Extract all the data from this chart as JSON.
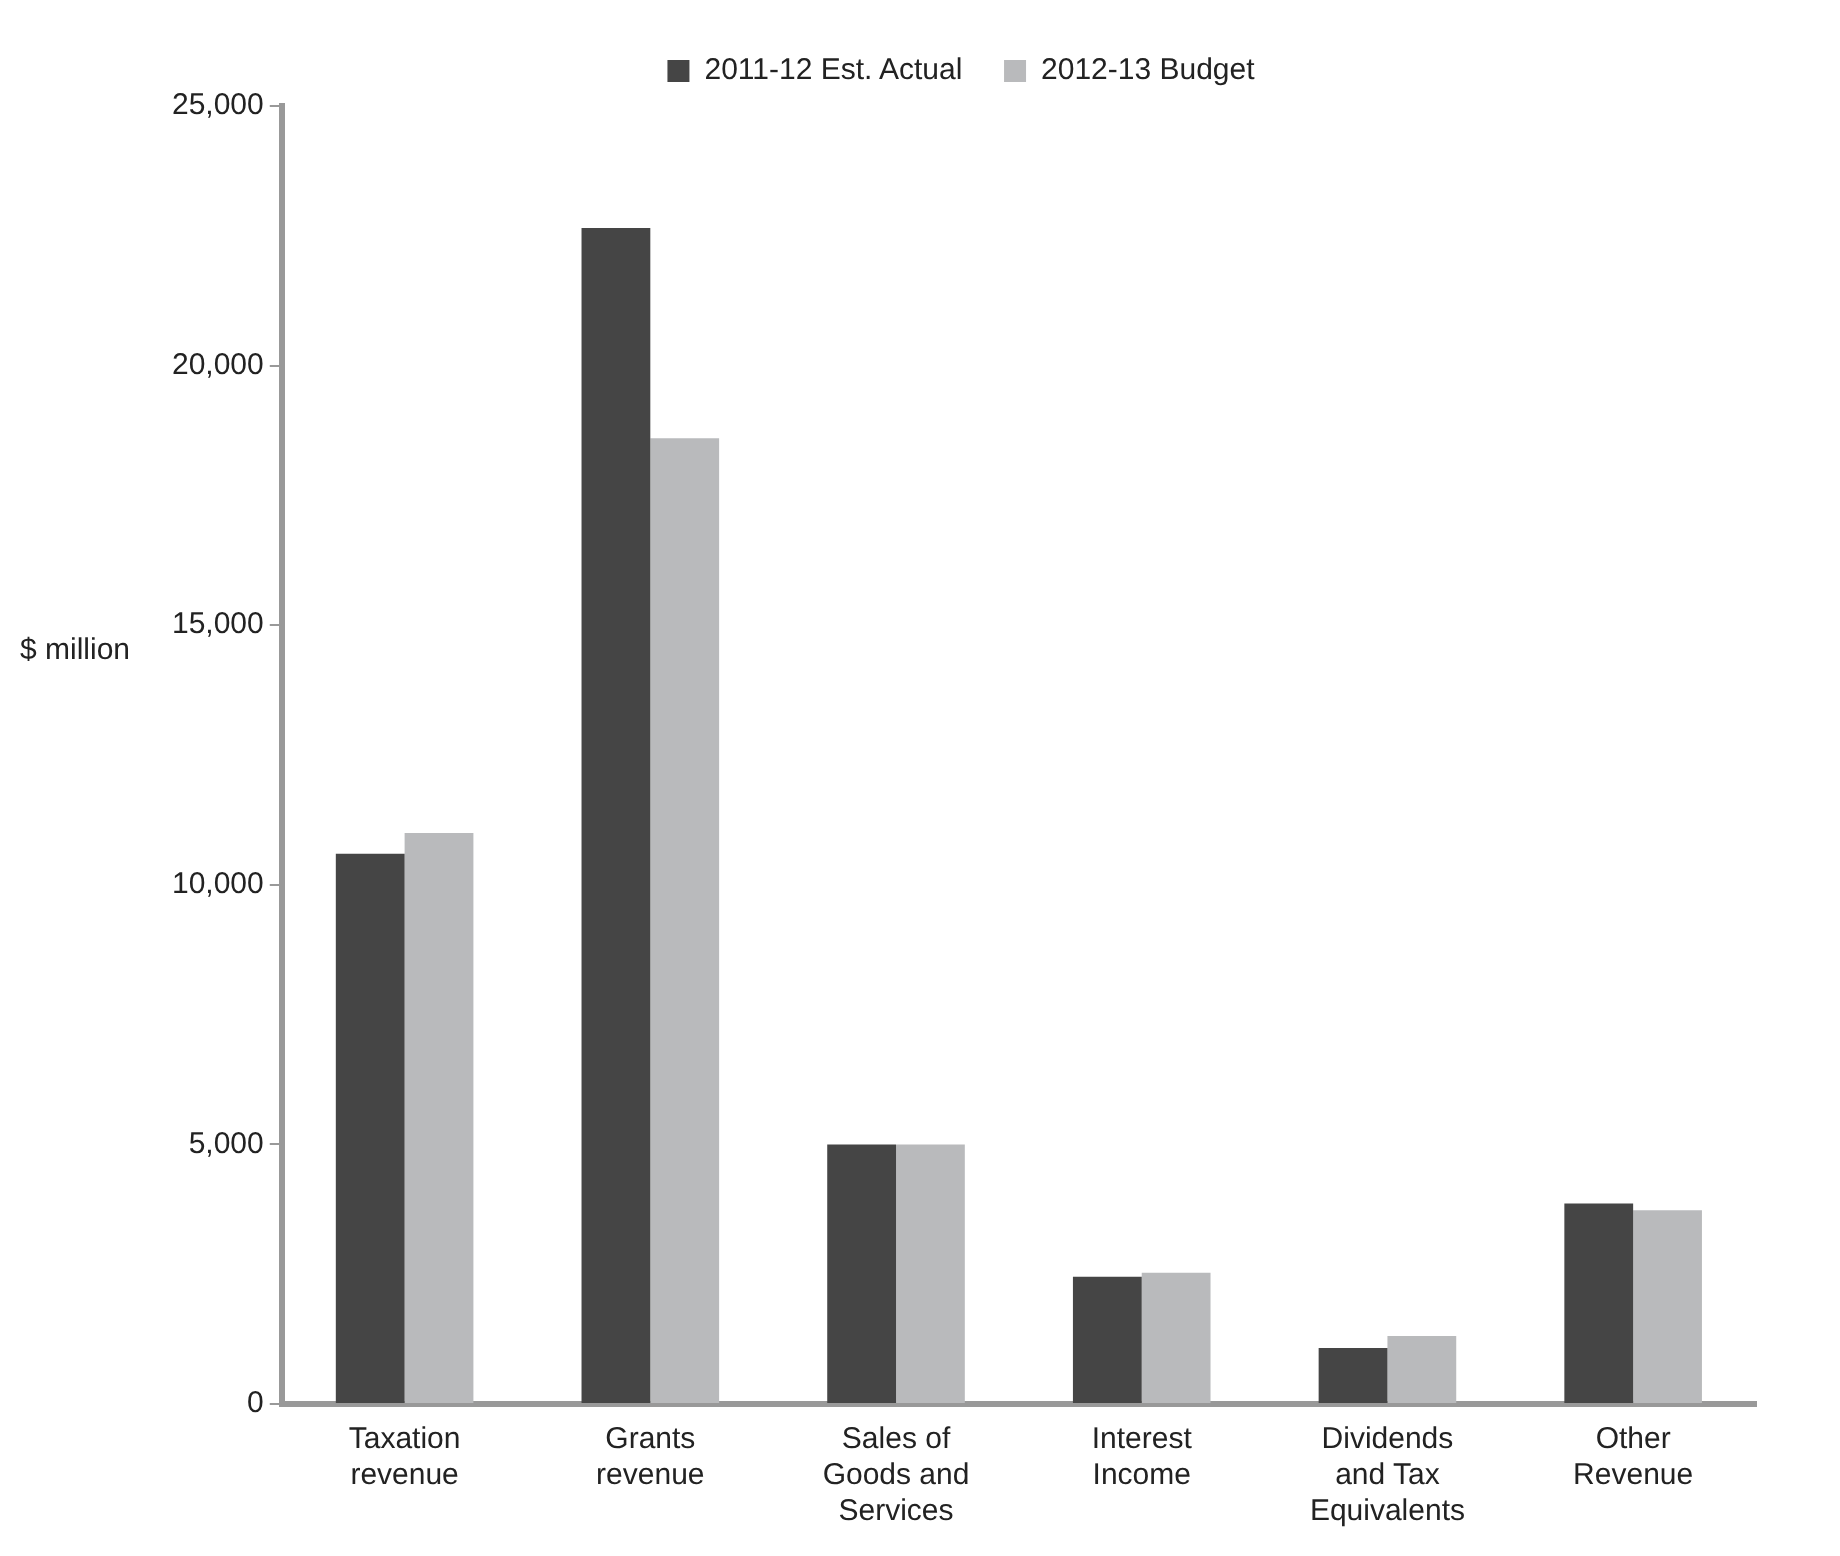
{
  "chart_data": {
    "type": "bar",
    "ylabel": "$ million",
    "categories": [
      "Taxation revenue",
      "Grants revenue",
      "Sales of Goods and Services",
      "Interest Income",
      "Dividends and Tax Equivalents",
      "Other Revenue"
    ],
    "series": [
      {
        "name": "2011-12 Est. Actual",
        "color": "#454545",
        "values": [
          10600,
          22650,
          5000,
          2450,
          1080,
          3860
        ]
      },
      {
        "name": "2012-13 Budget",
        "color": "#b9babc",
        "values": [
          11000,
          18600,
          5000,
          2530,
          1310,
          3730
        ]
      }
    ],
    "ylim": [
      0,
      25000
    ],
    "yticks": [
      {
        "value": 0,
        "label": "0"
      },
      {
        "value": 5000,
        "label": "5,000"
      },
      {
        "value": 10000,
        "label": "10,000"
      },
      {
        "value": 15000,
        "label": "15,000"
      },
      {
        "value": 20000,
        "label": "20,000"
      },
      {
        "value": 25000,
        "label": "25,000"
      }
    ],
    "grid": false,
    "legend": "top"
  }
}
